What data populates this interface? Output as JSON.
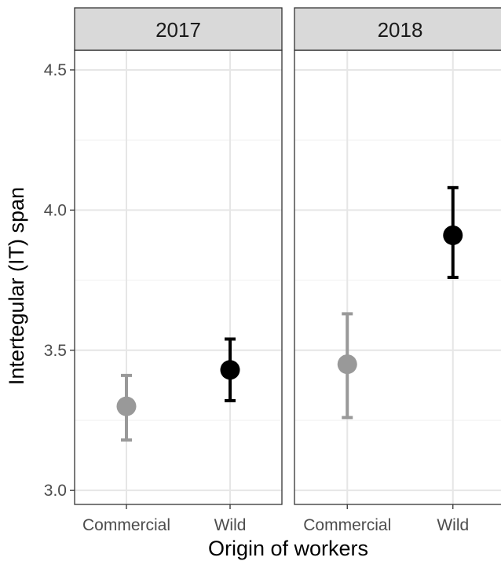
{
  "chart_data": {
    "type": "scatter",
    "facet_variable": "year",
    "facets": [
      {
        "label": "2017",
        "categories": [
          "Commercial",
          "Wild"
        ],
        "points": [
          {
            "x": "Commercial",
            "mean": 3.3,
            "lower": 3.18,
            "upper": 3.41,
            "color": "#999999"
          },
          {
            "x": "Wild",
            "mean": 3.43,
            "lower": 3.32,
            "upper": 3.54,
            "color": "#000000"
          }
        ]
      },
      {
        "label": "2018",
        "categories": [
          "Commercial",
          "Wild"
        ],
        "points": [
          {
            "x": "Commercial",
            "mean": 3.45,
            "lower": 3.26,
            "upper": 3.63,
            "color": "#999999"
          },
          {
            "x": "Wild",
            "mean": 3.91,
            "lower": 3.76,
            "upper": 4.08,
            "color": "#000000"
          }
        ]
      }
    ],
    "xlabel": "Origin of workers",
    "ylabel": "Intertegular (IT) span",
    "ylim": [
      2.95,
      4.57
    ],
    "yticks": [
      3.0,
      3.5,
      4.0,
      4.5
    ],
    "ytick_labels": [
      "3.0",
      "3.5",
      "4.0",
      "4.5"
    ],
    "grid": true,
    "legend": "none",
    "theme": "bw"
  }
}
